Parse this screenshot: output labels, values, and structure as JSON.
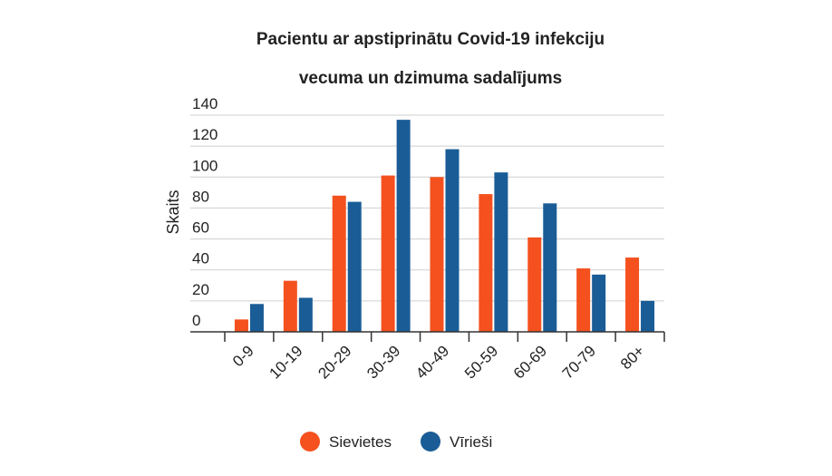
{
  "chart_data": {
    "type": "bar",
    "title": [
      "Pacientu ar apstiprinātu Covid-19 infekciju",
      "vecuma un dzimuma sadalījums"
    ],
    "xlabel": "",
    "ylabel": "Skaits",
    "ylim": [
      0,
      140
    ],
    "yticks": [
      "0",
      "20",
      "40",
      "60",
      "80",
      "100",
      "120",
      "140"
    ],
    "grid": true,
    "legend_position": "bottom",
    "categories": [
      "0-9",
      "10-19",
      "20-29",
      "30-39",
      "40-49",
      "50-59",
      "60-69",
      "70-79",
      "80+"
    ],
    "series": [
      {
        "name": "Sievietes",
        "color": "#f4511e",
        "values": [
          8,
          33,
          88,
          101,
          100,
          89,
          61,
          41,
          48
        ]
      },
      {
        "name": "Vīrieši",
        "color": "#1a5c96",
        "values": [
          18,
          22,
          84,
          137,
          118,
          103,
          83,
          37,
          20
        ]
      }
    ]
  }
}
